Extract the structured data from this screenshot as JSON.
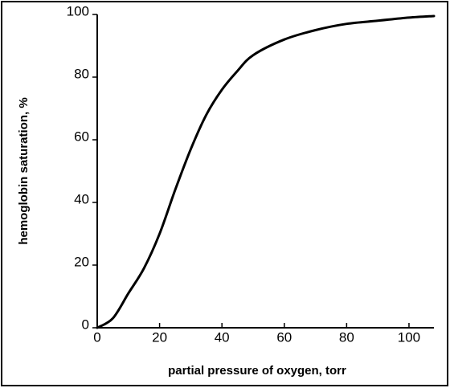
{
  "chart_data": {
    "type": "line",
    "xlabel": "partial pressure of oxygen, torr",
    "ylabel": "hemoglobin saturation, %",
    "x": [
      0,
      5,
      10,
      15,
      20,
      25,
      30,
      35,
      40,
      45,
      50,
      60,
      70,
      80,
      90,
      100,
      108
    ],
    "series": [
      {
        "color": "#000000",
        "values": [
          0,
          3,
          11,
          19,
          30,
          44,
          57,
          68,
          76,
          82,
          87,
          92,
          95,
          97,
          98,
          99,
          99.5
        ]
      }
    ],
    "xlim": [
      0,
      108
    ],
    "xticks": [
      0,
      20,
      40,
      60,
      80,
      100
    ],
    "ylim": [
      0,
      100
    ],
    "yticks": [
      0,
      20,
      40,
      60,
      80,
      100
    ],
    "grid": false
  }
}
